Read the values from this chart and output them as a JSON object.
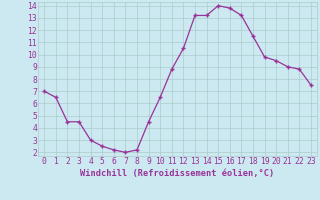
{
  "x": [
    0,
    1,
    2,
    3,
    4,
    5,
    6,
    7,
    8,
    9,
    10,
    11,
    12,
    13,
    14,
    15,
    16,
    17,
    18,
    19,
    20,
    21,
    22,
    23
  ],
  "y": [
    7.0,
    6.5,
    4.5,
    4.5,
    3.0,
    2.5,
    2.2,
    2.0,
    2.2,
    4.5,
    6.5,
    8.8,
    10.5,
    13.2,
    13.2,
    14.0,
    13.8,
    13.2,
    11.5,
    9.8,
    9.5,
    9.0,
    8.8,
    7.5
  ],
  "line_color": "#993399",
  "marker": "+",
  "xlabel": "Windchill (Refroidissement éolien,°C)",
  "ylim": [
    1.7,
    14.3
  ],
  "xlim": [
    -0.5,
    23.5
  ],
  "yticks": [
    2,
    3,
    4,
    5,
    6,
    7,
    8,
    9,
    10,
    11,
    12,
    13,
    14
  ],
  "xticks": [
    0,
    1,
    2,
    3,
    4,
    5,
    6,
    7,
    8,
    9,
    10,
    11,
    12,
    13,
    14,
    15,
    16,
    17,
    18,
    19,
    20,
    21,
    22,
    23
  ],
  "bg_color": "#cce8f0",
  "grid_color": "#aacccc",
  "tick_color": "#993399",
  "label_color": "#993399",
  "font_size": 5.8,
  "xlabel_size": 6.2
}
